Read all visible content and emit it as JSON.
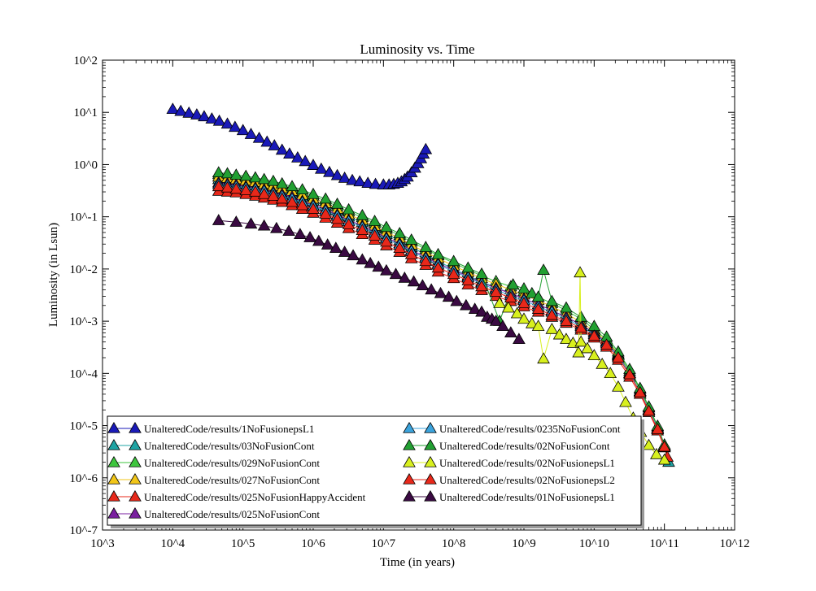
{
  "chart_data": {
    "type": "scatter",
    "title": "Luminosity vs. Time",
    "xlabel": "Time (in years)",
    "ylabel": "Luminosity (in Lsun)",
    "xscale": "log",
    "yscale": "log",
    "xlim": [
      1000,
      1000000000000
    ],
    "ylim": [
      1e-07,
      100
    ],
    "grid": false,
    "legend_position": "lower-left",
    "x_ticks": [
      {
        "value": 1000,
        "label": "10^3"
      },
      {
        "value": 10000,
        "label": "10^4"
      },
      {
        "value": 100000,
        "label": "10^5"
      },
      {
        "value": 1000000,
        "label": "10^6"
      },
      {
        "value": 10000000,
        "label": "10^7"
      },
      {
        "value": 100000000,
        "label": "10^8"
      },
      {
        "value": 1000000000,
        "label": "10^9"
      },
      {
        "value": 10000000000,
        "label": "10^10"
      },
      {
        "value": 100000000000,
        "label": "10^11"
      },
      {
        "value": 1000000000000,
        "label": "10^12"
      }
    ],
    "y_ticks": [
      {
        "value": 100,
        "label": "10^2"
      },
      {
        "value": 10,
        "label": "10^1"
      },
      {
        "value": 1,
        "label": "10^0"
      },
      {
        "value": 0.1,
        "label": "10^-1"
      },
      {
        "value": 0.01,
        "label": "10^-2"
      },
      {
        "value": 0.001,
        "label": "10^-3"
      },
      {
        "value": 0.0001,
        "label": "10^-4"
      },
      {
        "value": 1e-05,
        "label": "10^-5"
      },
      {
        "value": 1e-06,
        "label": "10^-6"
      },
      {
        "value": 1e-07,
        "label": "10^-7"
      }
    ],
    "series": [
      {
        "name": "UnalteredCode/results/1NoFusionepsL1",
        "color": "#1a1ab8",
        "x": [
          10000,
          13000,
          17000,
          22000,
          28000,
          36000,
          46000,
          60000,
          77000,
          100000,
          130000,
          170000,
          220000,
          280000,
          360000,
          460000,
          600000,
          770000,
          1000000,
          1300000,
          1700000,
          2200000,
          2800000,
          3600000,
          4600000,
          6000000,
          7700000,
          10000000,
          12000000,
          14000000,
          16000000,
          18000000,
          20000000,
          22000000,
          25000000,
          28000000,
          31000000,
          34000000,
          37000000,
          40000000
        ],
        "y": [
          11.5,
          10.5,
          9.7,
          9.0,
          8.3,
          7.5,
          6.8,
          6.0,
          5.2,
          4.5,
          3.8,
          3.2,
          2.7,
          2.3,
          1.9,
          1.6,
          1.35,
          1.15,
          0.97,
          0.82,
          0.71,
          0.62,
          0.55,
          0.5,
          0.47,
          0.44,
          0.42,
          0.41,
          0.41,
          0.42,
          0.44,
          0.47,
          0.52,
          0.58,
          0.7,
          0.86,
          1.05,
          1.3,
          1.6,
          1.95
        ]
      },
      {
        "name": "UnalteredCode/results/03NoFusionCont",
        "color": "#1fa4a4",
        "x": [
          45000,
          60000,
          80000,
          110000,
          150000,
          200000,
          270000,
          360000,
          500000,
          700000,
          1000000,
          1500000,
          2200000,
          3200000,
          5000000,
          7500000,
          11000000,
          17000000,
          25000000,
          40000000,
          60000000,
          100000000,
          160000000,
          250000000,
          400000000,
          650000000,
          1000000000,
          1600000000,
          2500000000,
          4000000000,
          6500000000,
          10000000000,
          15000000000,
          22000000000,
          32000000000,
          45000000000,
          60000000000,
          80000000000,
          100000000000,
          115000000000
        ],
        "y": [
          0.52,
          0.5,
          0.47,
          0.44,
          0.41,
          0.38,
          0.35,
          0.32,
          0.28,
          0.24,
          0.2,
          0.16,
          0.13,
          0.1,
          0.078,
          0.06,
          0.046,
          0.035,
          0.026,
          0.019,
          0.014,
          0.01,
          0.0075,
          0.0057,
          0.0044,
          0.0034,
          0.0027,
          0.0021,
          0.0016,
          0.0012,
          0.00085,
          0.0006,
          0.0004,
          0.00022,
          0.0001,
          4.5e-05,
          2e-05,
          8.5e-06,
          4e-06,
          2e-06
        ]
      },
      {
        "name": "UnalteredCode/results/029NoFusionCont",
        "color": "#3ec63e",
        "x": [
          45000,
          60000,
          80000,
          110000,
          150000,
          200000,
          270000,
          360000,
          500000,
          700000,
          1000000,
          1500000,
          2200000,
          3200000,
          5000000,
          7500000,
          11000000,
          17000000,
          25000000,
          40000000,
          60000000,
          100000000,
          160000000,
          250000000,
          400000000,
          650000000,
          1000000000,
          1600000000,
          2500000000,
          4000000000,
          6500000000,
          10000000000,
          15000000000,
          22000000000,
          32000000000,
          45000000000,
          60000000000,
          80000000000,
          100000000000
        ],
        "y": [
          0.65,
          0.62,
          0.59,
          0.56,
          0.52,
          0.48,
          0.44,
          0.4,
          0.35,
          0.3,
          0.25,
          0.2,
          0.16,
          0.125,
          0.097,
          0.075,
          0.058,
          0.044,
          0.033,
          0.024,
          0.018,
          0.013,
          0.0097,
          0.0074,
          0.0058,
          0.0046,
          0.0037,
          0.0029,
          0.0022,
          0.0016,
          0.0011,
          0.0007,
          0.00045,
          0.00024,
          0.00011,
          5e-05,
          2.2e-05,
          9.5e-06,
          4.2e-06
        ]
      },
      {
        "name": "UnalteredCode/results/027NoFusionCont",
        "color": "#f2c618",
        "x": [
          45000,
          60000,
          80000,
          110000,
          150000,
          200000,
          270000,
          360000,
          500000,
          700000,
          1000000,
          1500000,
          2200000,
          3200000,
          5000000,
          7500000,
          11000000,
          17000000,
          25000000,
          40000000,
          60000000,
          100000000,
          160000000,
          250000000,
          400000000,
          650000000,
          1000000000,
          1600000000,
          2500000000,
          4000000000,
          6500000000,
          10000000000,
          15000000000,
          22000000000,
          32000000000,
          45000000000,
          60000000000,
          80000000000,
          100000000000
        ],
        "y": [
          0.58,
          0.55,
          0.52,
          0.49,
          0.46,
          0.42,
          0.39,
          0.35,
          0.31,
          0.26,
          0.22,
          0.18,
          0.14,
          0.11,
          0.086,
          0.066,
          0.051,
          0.039,
          0.029,
          0.021,
          0.016,
          0.0115,
          0.0086,
          0.0066,
          0.0051,
          0.004,
          0.0032,
          0.0025,
          0.0019,
          0.0014,
          0.00095,
          0.00065,
          0.00042,
          0.00023,
          0.0001,
          4.6e-05,
          2e-05,
          8.8e-06,
          4e-06
        ]
      },
      {
        "name": "UnalteredCode/results/025NoFusionHappyAccident",
        "color": "#e8281a",
        "x": [
          45000,
          60000,
          80000,
          110000,
          150000,
          200000,
          270000,
          360000,
          500000,
          700000,
          1000000,
          1500000,
          2200000,
          3200000,
          5000000,
          7500000,
          11000000,
          17000000,
          25000000,
          40000000,
          60000000,
          100000000,
          160000000,
          250000000,
          400000000,
          650000000,
          1000000000,
          1600000000,
          2500000000,
          4000000000,
          6500000000,
          10000000000,
          15000000000,
          22000000000,
          32000000000,
          45000000000,
          60000000000,
          80000000000,
          100000000000,
          110000000000
        ],
        "y": [
          0.31,
          0.3,
          0.29,
          0.27,
          0.25,
          0.23,
          0.21,
          0.19,
          0.165,
          0.14,
          0.118,
          0.095,
          0.076,
          0.06,
          0.046,
          0.036,
          0.028,
          0.021,
          0.0158,
          0.0118,
          0.0088,
          0.0066,
          0.005,
          0.0039,
          0.003,
          0.0024,
          0.0019,
          0.0015,
          0.0012,
          0.00092,
          0.00068,
          0.00048,
          0.00032,
          0.00018,
          8.5e-05,
          4e-05,
          1.8e-05,
          8e-06,
          3.8e-06,
          2.5e-06
        ]
      },
      {
        "name": "UnalteredCode/results/025NoFusionCont",
        "color": "#7a1fa0",
        "x": [
          45000,
          60000,
          80000,
          110000,
          150000,
          200000,
          270000,
          360000,
          500000,
          700000,
          1000000,
          1500000,
          2200000,
          3200000,
          5000000,
          7500000,
          11000000,
          17000000,
          25000000,
          40000000,
          60000000,
          100000000,
          160000000,
          250000000,
          400000000,
          650000000,
          1000000000,
          1600000000,
          2500000000,
          4000000000,
          6500000000,
          10000000000,
          15000000000,
          22000000000,
          32000000000,
          45000000000,
          60000000000,
          80000000000,
          100000000000
        ],
        "y": [
          0.45,
          0.43,
          0.41,
          0.38,
          0.36,
          0.33,
          0.3,
          0.27,
          0.24,
          0.2,
          0.17,
          0.14,
          0.11,
          0.087,
          0.067,
          0.052,
          0.04,
          0.031,
          0.023,
          0.017,
          0.0128,
          0.0095,
          0.0072,
          0.0055,
          0.0043,
          0.0034,
          0.0027,
          0.0021,
          0.0016,
          0.0012,
          0.00086,
          0.0006,
          0.0004,
          0.00022,
          0.0001,
          4.5e-05,
          2e-05,
          8.8e-06,
          4e-06
        ]
      },
      {
        "name": "UnalteredCode/results/0235NoFusionCont",
        "color": "#3ba3dc",
        "x": [
          45000,
          60000,
          80000,
          110000,
          150000,
          200000,
          270000,
          360000,
          500000,
          700000,
          1000000,
          1500000,
          2200000,
          3200000,
          5000000,
          7500000,
          11000000,
          17000000,
          25000000,
          40000000,
          60000000,
          100000000,
          160000000,
          250000000,
          400000000,
          650000000,
          1000000000,
          1600000000,
          2500000000,
          4000000000,
          6500000000,
          10000000000,
          15000000000,
          22000000000,
          32000000000,
          45000000000,
          60000000000,
          80000000000,
          100000000000
        ],
        "y": [
          0.42,
          0.4,
          0.38,
          0.36,
          0.34,
          0.31,
          0.28,
          0.25,
          0.22,
          0.19,
          0.16,
          0.13,
          0.104,
          0.082,
          0.063,
          0.049,
          0.038,
          0.029,
          0.022,
          0.016,
          0.012,
          0.009,
          0.0068,
          0.0052,
          0.004,
          0.0031,
          0.0025,
          0.0019,
          0.0015,
          0.0011,
          0.0008,
          0.00056,
          0.00038,
          0.00021,
          0.0001,
          4.5e-05,
          2e-05,
          8.8e-06,
          4e-06
        ]
      },
      {
        "name": "UnalteredCode/results/02NoFusionCont",
        "color": "#22a032",
        "x": [
          45000,
          60000,
          80000,
          110000,
          150000,
          200000,
          270000,
          360000,
          500000,
          700000,
          1000000,
          1500000,
          2200000,
          3200000,
          5000000,
          7500000,
          11000000,
          17000000,
          25000000,
          40000000,
          60000000,
          100000000,
          160000000,
          250000000,
          450000000,
          700000000,
          1000000000,
          1300000000,
          1600000000,
          1900000000,
          2500000000,
          4000000000,
          6500000000,
          10000000000,
          15000000000,
          22000000000,
          32000000000,
          45000000000,
          60000000000,
          80000000000,
          100000000000
        ],
        "y": [
          0.7,
          0.67,
          0.63,
          0.6,
          0.56,
          0.52,
          0.48,
          0.43,
          0.38,
          0.33,
          0.27,
          0.22,
          0.175,
          0.137,
          0.106,
          0.082,
          0.063,
          0.048,
          0.036,
          0.026,
          0.019,
          0.014,
          0.0105,
          0.008,
          0.001,
          0.005,
          0.0042,
          0.0034,
          0.0029,
          0.0095,
          0.0024,
          0.0018,
          0.0012,
          0.0008,
          0.0005,
          0.00026,
          0.00012,
          5.2e-05,
          2.3e-05,
          9.8e-06,
          4.3e-06
        ]
      },
      {
        "name": "UnalteredCode/results/02NoFusionepsL1",
        "color": "#d8f01e",
        "x": [
          450000000,
          600000000,
          800000000,
          1000000000,
          1300000000,
          1600000000,
          1900000000,
          2500000000,
          3200000000,
          4000000000,
          5000000000,
          6000000000,
          6300000000,
          6500000000,
          8000000000,
          10000000000,
          13000000000,
          17000000000,
          22000000000,
          28000000000,
          36000000000,
          46000000000,
          60000000000,
          77000000000,
          100000000000
        ],
        "y": [
          0.0022,
          0.0018,
          0.0014,
          0.0011,
          0.0009,
          0.0008,
          0.00019,
          0.0007,
          0.00055,
          0.00045,
          0.00038,
          0.00025,
          0.0085,
          0.0004,
          0.0003,
          0.00022,
          0.00015,
          0.0001,
          5.5e-05,
          2.8e-05,
          1.4e-05,
          7.5e-06,
          4.2e-06,
          2.8e-06,
          2.2e-06
        ]
      },
      {
        "name": "UnalteredCode/results/02NoFusionepsL2",
        "color": "#e8281a",
        "x": [
          45000,
          60000,
          80000,
          110000,
          150000,
          200000,
          270000,
          360000,
          500000,
          700000,
          1000000,
          1500000,
          2200000,
          3200000,
          5000000,
          7500000,
          11000000,
          17000000,
          25000000,
          40000000,
          60000000,
          100000000,
          160000000,
          250000000,
          400000000,
          650000000,
          1000000000,
          1600000000,
          2500000000,
          4000000000,
          6500000000,
          10000000000,
          15000000000,
          22000000000,
          32000000000,
          45000000000,
          60000000000,
          80000000000,
          100000000000
        ],
        "y": [
          0.38,
          0.36,
          0.34,
          0.32,
          0.3,
          0.27,
          0.25,
          0.22,
          0.19,
          0.165,
          0.14,
          0.113,
          0.09,
          0.071,
          0.055,
          0.043,
          0.033,
          0.025,
          0.019,
          0.014,
          0.0105,
          0.0079,
          0.006,
          0.0046,
          0.0036,
          0.0028,
          0.0022,
          0.0017,
          0.0013,
          0.001,
          0.00074,
          0.00052,
          0.00035,
          0.0002,
          9.5e-05,
          4.3e-05,
          1.9e-05,
          8.5e-06,
          3.9e-06
        ]
      },
      {
        "name": "UnalteredCode/results/01NoFusionepsL1",
        "color": "#3a0a42",
        "x": [
          45000,
          80000,
          130000,
          200000,
          300000,
          450000,
          650000,
          900000,
          1200000,
          1600000,
          2100000,
          2800000,
          3700000,
          5000000,
          6500000,
          8500000,
          11000000,
          15000000,
          20000000,
          27000000,
          36000000,
          48000000,
          65000000,
          85000000,
          110000000,
          150000000,
          200000000,
          250000000,
          300000000,
          350000000,
          400000000,
          500000000,
          650000000,
          850000000
        ],
        "y": [
          0.085,
          0.079,
          0.073,
          0.067,
          0.06,
          0.053,
          0.046,
          0.04,
          0.034,
          0.029,
          0.025,
          0.021,
          0.018,
          0.015,
          0.0128,
          0.0109,
          0.0093,
          0.0079,
          0.0067,
          0.0057,
          0.0048,
          0.004,
          0.0034,
          0.0029,
          0.0024,
          0.002,
          0.0017,
          0.0015,
          0.0012,
          0.0011,
          0.001,
          0.0008,
          0.0006,
          0.00045
        ]
      }
    ]
  }
}
